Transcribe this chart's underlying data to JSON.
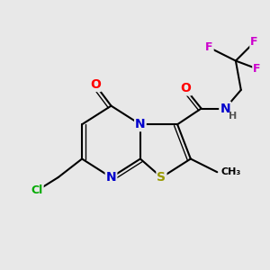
{
  "bg_color": "#e8e8e8",
  "bond_color": "#000000",
  "bond_width": 1.5,
  "atom_colors": {
    "O": "#ff0000",
    "N": "#0000cc",
    "S": "#999900",
    "Cl": "#00aa00",
    "F": "#cc00cc",
    "C": "#000000",
    "H": "#555555"
  },
  "font_size": 9
}
